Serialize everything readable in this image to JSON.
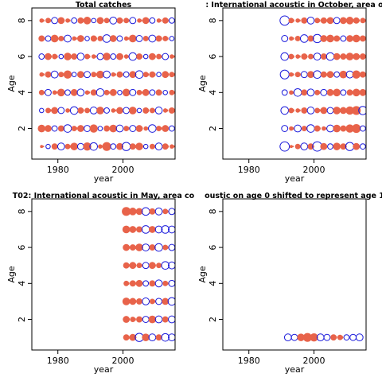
{
  "colors": {
    "observed": "#e8634a",
    "predicted": "#1a1adb",
    "frame": "#000000"
  },
  "chart_data": [
    {
      "type": "scatter",
      "title": "Total catches",
      "xlabel": "year",
      "ylabel": "Age",
      "xlim": [
        1972,
        2016
      ],
      "ylim": [
        0.3,
        8.7
      ],
      "xticks": [
        1980,
        2000
      ],
      "yticks": [
        2,
        4,
        6,
        8
      ],
      "years": [
        1975,
        2015
      ],
      "ages": [
        1,
        2,
        3,
        4,
        5,
        6,
        7,
        8
      ],
      "x": [
        1975,
        1977,
        1979,
        1981,
        1983,
        1985,
        1987,
        1989,
        1991,
        1993,
        1995,
        1997,
        1999,
        2001,
        2003,
        2005,
        2007,
        2009,
        2011,
        2013,
        2015
      ],
      "series": [
        {
          "name": "observed",
          "color": "observed",
          "kind": "filled",
          "residuals": [
            [
              0.1,
              -0.2,
              0.4,
              -0.5,
              0.3,
              0.6,
              -0.4,
              0.7,
              -0.6,
              0.2,
              0.8,
              -0.3,
              0.5,
              -0.7,
              0.4,
              0.6,
              -0.2,
              0.3,
              -0.5,
              0.4,
              0.2
            ],
            [
              0.6,
              0.5,
              -0.3,
              0.4,
              -0.6,
              0.3,
              0.5,
              -0.4,
              0.7,
              -0.2,
              0.4,
              0.6,
              -0.5,
              0.3,
              -0.4,
              0.5,
              0.2,
              -0.6,
              0.3,
              0.5,
              -0.3
            ],
            [
              -0.2,
              0.3,
              0.5,
              -0.4,
              0.2,
              -0.6,
              0.4,
              0.3,
              -0.5,
              0.6,
              -0.3,
              0.2,
              0.5,
              -0.4,
              0.6,
              -0.2,
              0.4,
              0.3,
              -0.5,
              0.2,
              0.4
            ],
            [
              0.3,
              -0.4,
              0.2,
              0.6,
              -0.3,
              0.5,
              -0.5,
              0.2,
              0.4,
              -0.6,
              0.3,
              0.5,
              -0.2,
              0.6,
              -0.4,
              0.3,
              0.5,
              -0.3,
              0.4,
              -0.2,
              0.3
            ],
            [
              0.2,
              0.4,
              -0.5,
              0.3,
              0.7,
              -0.2,
              0.5,
              -0.4,
              0.3,
              0.6,
              -0.5,
              0.2,
              0.4,
              -0.3,
              0.5,
              -0.6,
              0.3,
              0.4,
              -0.2,
              0.5,
              0.3
            ],
            [
              -0.3,
              0.5,
              0.3,
              -0.2,
              0.6,
              0.4,
              -0.5,
              0.3,
              0.2,
              -0.4,
              0.6,
              -0.3,
              0.5,
              0.2,
              -0.6,
              0.4,
              -0.2,
              0.5,
              0.3,
              -0.4,
              0.2
            ],
            [
              0.4,
              -0.3,
              0.6,
              0.3,
              -0.5,
              0.2,
              0.5,
              -0.2,
              0.4,
              0.3,
              -0.6,
              0.5,
              -0.3,
              0.2,
              0.6,
              -0.4,
              0.3,
              -0.5,
              0.4,
              0.3,
              -0.2
            ],
            [
              0.2,
              0.3,
              -0.4,
              0.5,
              0.2,
              -0.3,
              0.4,
              0.6,
              -0.2,
              0.5,
              0.3,
              -0.5,
              0.4,
              0.3,
              -0.4,
              0.2,
              0.5,
              -0.3,
              0.2,
              0.4,
              -0.3
            ]
          ]
        }
      ]
    },
    {
      "type": "scatter",
      "title": ":    International acoustic in October, area o",
      "xlabel": "year",
      "ylabel": "Age",
      "xlim": [
        1972,
        2016
      ],
      "ylim": [
        0.3,
        8.7
      ],
      "xticks": [
        1980,
        2000
      ],
      "yticks": [
        2,
        4,
        6,
        8
      ],
      "years": [
        1991,
        2015
      ],
      "ages": [
        1,
        2,
        3,
        4,
        5,
        6,
        7,
        8
      ],
      "x": [
        1991,
        1993,
        1995,
        1997,
        1999,
        2001,
        2003,
        2005,
        2007,
        2009,
        2011,
        2013,
        2015
      ],
      "series": [
        {
          "name": "observed",
          "color": "observed",
          "kind": "filled",
          "residuals": [
            [
              -0.9,
              0.1,
              0.3,
              -0.5,
              0.4,
              -0.9,
              0.5,
              -0.3,
              0.6,
              0.4,
              -0.7,
              0.5,
              -0.3
            ],
            [
              -0.4,
              0.2,
              -0.5,
              0.3,
              -0.6,
              0.4,
              0.2,
              -0.5,
              0.6,
              0.4,
              0.7,
              0.8,
              -0.3
            ],
            [
              -0.6,
              0.3,
              0.2,
              0.4,
              -0.5,
              0.3,
              0.5,
              -0.4,
              0.6,
              0.5,
              0.7,
              0.8,
              -0.7
            ],
            [
              -0.3,
              0.2,
              -0.6,
              0.4,
              -0.5,
              0.3,
              -0.4,
              0.5,
              0.6,
              -0.3,
              0.4,
              0.6,
              0.5
            ],
            [
              -0.8,
              0.2,
              0.3,
              -0.4,
              0.5,
              -0.6,
              0.4,
              0.5,
              -0.3,
              0.6,
              -0.5,
              0.7,
              0.4
            ],
            [
              -0.6,
              0.3,
              0.2,
              0.4,
              0.3,
              -0.5,
              0.4,
              -0.6,
              0.5,
              0.4,
              0.6,
              0.5,
              0.4
            ],
            [
              -0.4,
              0.2,
              0.3,
              -0.6,
              0.4,
              -0.7,
              0.5,
              0.6,
              0.4,
              -0.3,
              0.5,
              0.6,
              0.4
            ],
            [
              -0.9,
              0.3,
              0.2,
              0.4,
              -0.5,
              0.3,
              0.4,
              0.5,
              -0.4,
              0.5,
              0.6,
              0.4,
              0.3
            ]
          ]
        }
      ]
    },
    {
      "type": "scatter",
      "title": "T02: International acoustic in May, area co",
      "xlabel": "year",
      "ylabel": "Age",
      "xlim": [
        1972,
        2016
      ],
      "ylim": [
        0.3,
        8.7
      ],
      "xticks": [
        1980,
        2000
      ],
      "yticks": [
        2,
        4,
        6,
        8
      ],
      "years": [
        2001,
        2015
      ],
      "ages": [
        1,
        2,
        3,
        4,
        5,
        6,
        7,
        8
      ],
      "x": [
        2001,
        2003,
        2005,
        2007,
        2009,
        2011,
        2013,
        2015
      ],
      "series": [
        {
          "name": "observed",
          "color": "observed",
          "kind": "filled",
          "residuals": [
            [
              0.4,
              0.5,
              -0.7,
              0.6,
              -0.5,
              0.4,
              -0.6,
              -0.5
            ],
            [
              0.5,
              0.3,
              0.4,
              -0.4,
              0.6,
              -0.5,
              0.4,
              -0.5
            ],
            [
              0.6,
              0.5,
              0.4,
              -0.5,
              0.3,
              -0.4,
              0.5,
              -0.6
            ],
            [
              0.3,
              0.4,
              0.5,
              -0.3,
              0.4,
              -0.5,
              0.3,
              -0.4
            ],
            [
              0.4,
              0.5,
              0.3,
              -0.4,
              0.5,
              0.3,
              -0.6,
              -0.5
            ],
            [
              0.5,
              0.4,
              0.6,
              -0.5,
              0.4,
              -0.6,
              0.3,
              -0.4
            ],
            [
              0.6,
              0.5,
              0.4,
              -0.6,
              0.5,
              -0.5,
              -0.6,
              -0.5
            ],
            [
              0.8,
              0.6,
              0.5,
              -0.6,
              0.4,
              -0.5,
              0.3,
              -0.4
            ]
          ]
        }
      ]
    },
    {
      "type": "scatter",
      "title": "oustic on age 0 shifted to represent age 1",
      "xlabel": "year",
      "ylabel": "Age",
      "xlim": [
        1972,
        2016
      ],
      "ylim": [
        0.3,
        8.7
      ],
      "xticks": [
        1980,
        2000
      ],
      "yticks": [
        2,
        4,
        6,
        8
      ],
      "years": [
        1992,
        2015
      ],
      "ages": [
        1
      ],
      "x": [
        1992,
        1994,
        1996,
        1998,
        2000,
        2002,
        2004,
        2006,
        2008,
        2010,
        2012,
        2014
      ],
      "series": [
        {
          "name": "observed",
          "color": "observed",
          "kind": "filled",
          "residuals": [
            [
              -0.5,
              -0.4,
              0.6,
              0.8,
              0.7,
              -0.5,
              -0.4,
              0.4,
              0.3,
              -0.3,
              -0.4,
              -0.5
            ]
          ]
        }
      ]
    }
  ]
}
